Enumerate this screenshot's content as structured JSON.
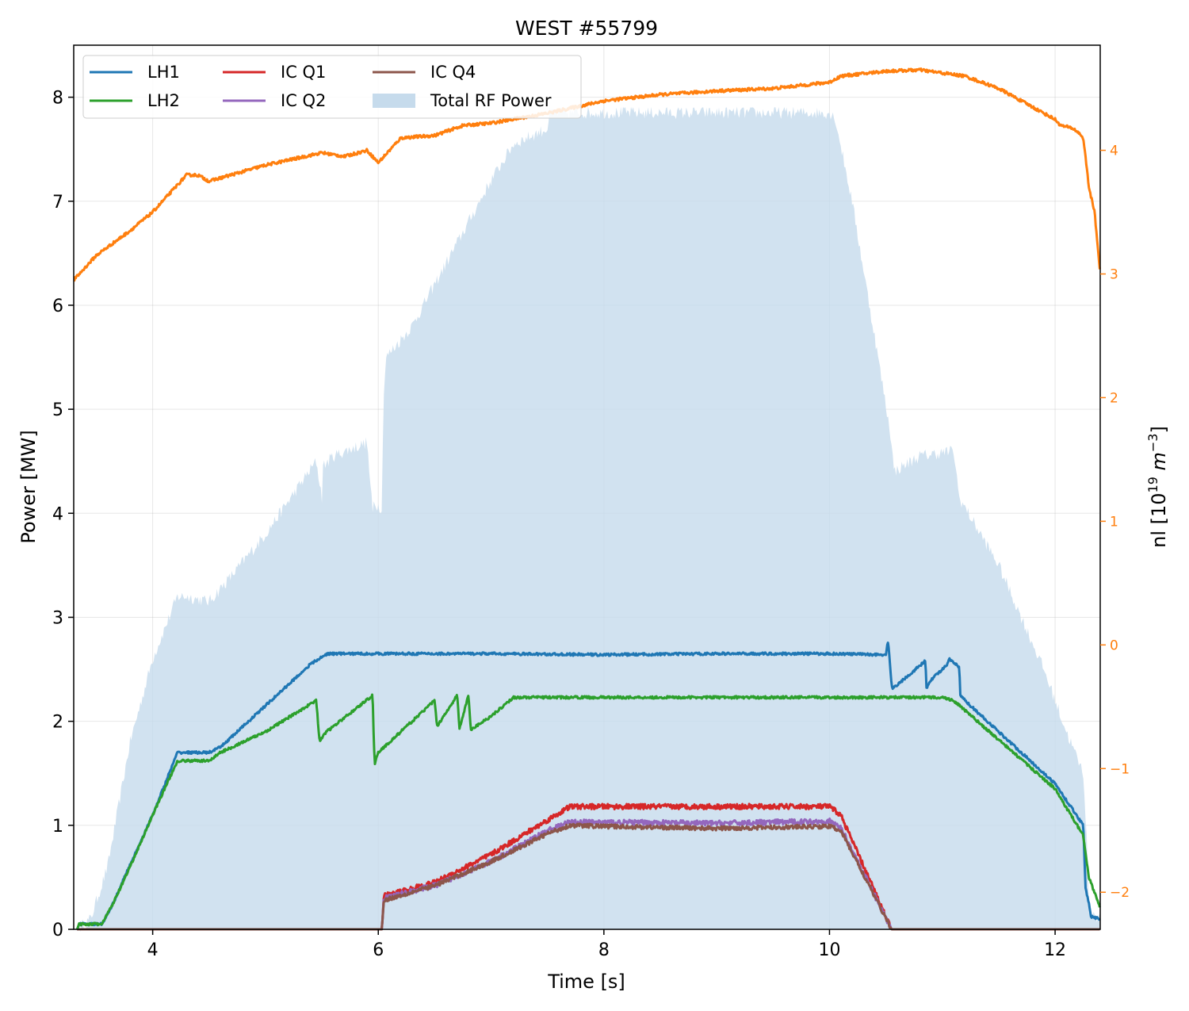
{
  "chart_data": {
    "type": "line",
    "title": "WEST #55799",
    "xlabel": "Time [s]",
    "ylabel": "Power [MW]",
    "ylabel_right": "nl [10^19 m^-3]",
    "ylabel_right_parts": {
      "base": "nl [10",
      "sup1": "19",
      "mid": " m",
      "sup2": "−3",
      "end": "]"
    },
    "xlim": [
      3.3,
      12.4
    ],
    "ylim": [
      0,
      8.5
    ],
    "ylim_right": [
      -2.3,
      4.85
    ],
    "xticks": [
      4,
      6,
      8,
      10,
      12
    ],
    "yticks": [
      0,
      1,
      2,
      3,
      4,
      5,
      6,
      7,
      8
    ],
    "yticks_right": [
      -2,
      -1,
      0,
      1,
      2,
      3,
      4
    ],
    "yticks_right_labels": [
      "−2",
      "−1",
      "0",
      "1",
      "2",
      "3",
      "4"
    ],
    "grid": true,
    "legend_position": "top-left",
    "legend_columns": 3,
    "colors": {
      "LH1": "#1f77b4",
      "LH2": "#2ca02c",
      "IC Q1": "#d62728",
      "IC Q2": "#9467bd",
      "IC Q4": "#8c564b",
      "Total RF Power": "#c6dbec",
      "nl": "#ff7f0e"
    },
    "series": [
      {
        "name": "LH1",
        "axis": "left",
        "kind": "line",
        "x": [
          3.33,
          3.35,
          3.55,
          3.65,
          3.75,
          4.0,
          4.22,
          4.5,
          4.6,
          5.0,
          5.4,
          5.55,
          6.0,
          7.0,
          8.0,
          9.0,
          10.0,
          10.5,
          10.52,
          10.55,
          10.56,
          10.6,
          10.85,
          10.86,
          10.9,
          11.05,
          11.06,
          11.15,
          11.16,
          11.2,
          12.0,
          12.25,
          12.27,
          12.3,
          12.32,
          12.4
        ],
        "y": [
          0.0,
          0.05,
          0.05,
          0.25,
          0.5,
          1.1,
          1.7,
          1.7,
          1.75,
          2.15,
          2.55,
          2.65,
          2.65,
          2.65,
          2.64,
          2.65,
          2.65,
          2.64,
          2.78,
          2.35,
          2.32,
          2.35,
          2.58,
          2.32,
          2.4,
          2.55,
          2.6,
          2.52,
          2.25,
          2.2,
          1.4,
          1.0,
          0.4,
          0.25,
          0.12,
          0.1
        ]
      },
      {
        "name": "LH2",
        "axis": "left",
        "kind": "line",
        "x": [
          3.33,
          3.35,
          3.55,
          3.65,
          3.8,
          4.0,
          4.22,
          4.5,
          4.6,
          5.0,
          5.45,
          5.48,
          5.52,
          5.95,
          5.96,
          5.97,
          6.0,
          6.5,
          6.52,
          6.7,
          6.72,
          6.8,
          6.82,
          7.0,
          7.2,
          8.0,
          9.0,
          10.0,
          10.5,
          11.0,
          11.1,
          12.0,
          12.25,
          12.3,
          12.35,
          12.4
        ],
        "y": [
          0.0,
          0.05,
          0.05,
          0.25,
          0.6,
          1.1,
          1.62,
          1.62,
          1.7,
          1.9,
          2.2,
          1.8,
          1.88,
          2.25,
          1.8,
          1.6,
          1.7,
          2.2,
          1.95,
          2.25,
          1.93,
          2.25,
          1.92,
          2.05,
          2.23,
          2.23,
          2.23,
          2.23,
          2.23,
          2.23,
          2.2,
          1.35,
          0.9,
          0.5,
          0.35,
          0.2
        ]
      },
      {
        "name": "IC Q1",
        "axis": "left",
        "kind": "line",
        "x": [
          3.33,
          6.03,
          6.05,
          6.5,
          7.0,
          7.5,
          7.7,
          8.0,
          9.0,
          10.0,
          10.1,
          10.55,
          12.4
        ],
        "y": [
          0.0,
          0.0,
          0.32,
          0.45,
          0.72,
          1.05,
          1.18,
          1.18,
          1.18,
          1.18,
          1.1,
          0.0,
          0.0
        ]
      },
      {
        "name": "IC Q2",
        "axis": "left",
        "kind": "line",
        "x": [
          3.33,
          6.03,
          6.05,
          6.5,
          7.0,
          7.5,
          7.7,
          8.0,
          9.0,
          10.0,
          10.1,
          10.55,
          12.4
        ],
        "y": [
          0.0,
          0.0,
          0.3,
          0.42,
          0.65,
          0.95,
          1.03,
          1.03,
          1.02,
          1.04,
          0.98,
          0.0,
          0.0
        ]
      },
      {
        "name": "IC Q4",
        "axis": "left",
        "kind": "line",
        "x": [
          3.33,
          6.03,
          6.05,
          6.5,
          7.0,
          7.5,
          7.7,
          8.0,
          9.0,
          10.0,
          10.1,
          10.55,
          12.4
        ],
        "y": [
          0.0,
          0.0,
          0.28,
          0.42,
          0.65,
          0.92,
          1.0,
          0.99,
          0.97,
          0.99,
          0.95,
          0.0,
          0.0
        ]
      },
      {
        "name": "Total RF Power",
        "axis": "left",
        "kind": "area",
        "x": [
          3.33,
          3.45,
          3.6,
          3.8,
          4.0,
          4.22,
          4.3,
          4.5,
          4.7,
          5.0,
          5.45,
          5.5,
          5.51,
          5.6,
          5.9,
          5.95,
          5.96,
          6.03,
          6.05,
          6.07,
          6.3,
          6.5,
          6.75,
          7.0,
          7.2,
          7.4,
          7.5,
          7.52,
          8.0,
          9.0,
          10.0,
          10.05,
          10.2,
          10.4,
          10.55,
          10.57,
          10.8,
          11.1,
          11.15,
          11.5,
          11.9,
          12.1,
          12.25,
          12.28,
          12.3,
          12.4
        ],
        "y": [
          0.0,
          0.1,
          0.6,
          1.8,
          2.6,
          3.2,
          3.2,
          3.15,
          3.4,
          3.8,
          4.5,
          4.15,
          4.45,
          4.55,
          4.68,
          4.0,
          4.1,
          4.05,
          5.2,
          5.5,
          5.8,
          6.2,
          6.7,
          7.2,
          7.55,
          7.65,
          7.7,
          7.85,
          7.85,
          7.85,
          7.85,
          7.8,
          7.0,
          5.7,
          4.7,
          4.4,
          4.55,
          4.6,
          4.15,
          3.5,
          2.5,
          1.9,
          1.5,
          0.9,
          0.2,
          0.1
        ]
      },
      {
        "name": "nl",
        "axis": "right",
        "kind": "line",
        "x": [
          3.3,
          3.5,
          3.8,
          4.0,
          4.15,
          4.3,
          4.4,
          4.5,
          5.0,
          5.5,
          5.7,
          5.9,
          6.0,
          6.1,
          6.2,
          6.5,
          6.75,
          7.0,
          7.5,
          8.0,
          8.5,
          9.0,
          9.5,
          10.0,
          10.1,
          10.5,
          10.8,
          11.2,
          11.5,
          11.8,
          12.0,
          12.05,
          12.15,
          12.2,
          12.25,
          12.3,
          12.35,
          12.4
        ],
        "y": [
          2.95,
          3.15,
          3.35,
          3.5,
          3.65,
          3.8,
          3.8,
          3.75,
          3.88,
          3.98,
          3.95,
          4.0,
          3.9,
          4.0,
          4.1,
          4.12,
          4.2,
          4.22,
          4.3,
          4.4,
          4.45,
          4.48,
          4.5,
          4.55,
          4.6,
          4.64,
          4.65,
          4.6,
          4.5,
          4.35,
          4.25,
          4.2,
          4.18,
          4.15,
          4.1,
          3.7,
          3.5,
          3.0
        ]
      }
    ]
  }
}
